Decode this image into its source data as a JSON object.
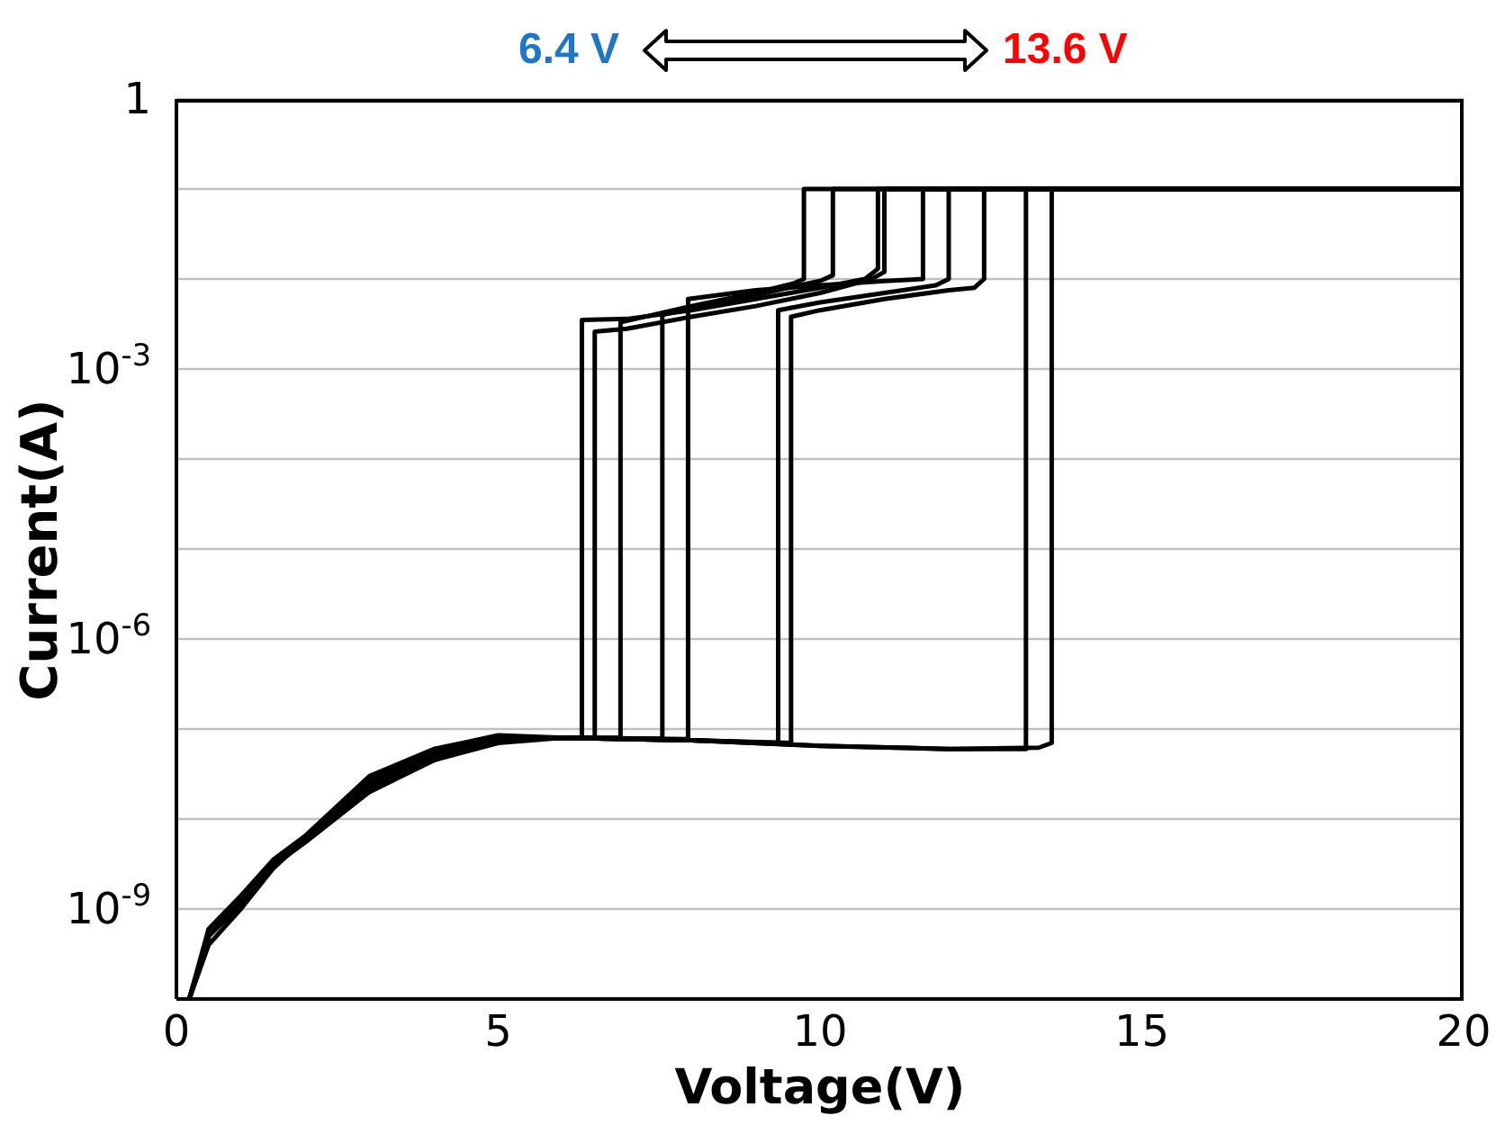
{
  "chart_data": {
    "type": "line",
    "xlabel": "Voltage(V)",
    "ylabel": "Current(A)",
    "log": "y",
    "grid": "y",
    "legend": false,
    "marker": "none",
    "line_style": "solid",
    "xlim": [
      0,
      20
    ],
    "xticks": [
      0,
      5,
      10,
      15,
      20
    ],
    "ylim": [
      1e-10,
      1
    ],
    "yticks": [
      {
        "value": 1e-10,
        "label": null
      },
      {
        "value": 1e-09,
        "label": "10$^{-9}$"
      },
      {
        "value": 1e-08,
        "label": null
      },
      {
        "value": 1e-07,
        "label": null
      },
      {
        "value": 1e-06,
        "label": "10$^{-6}$"
      },
      {
        "value": 1e-05,
        "label": null
      },
      {
        "value": 0.0001,
        "label": null
      },
      {
        "value": 0.001,
        "label": "10$^{-3}$"
      },
      {
        "value": 0.01,
        "label": null
      },
      {
        "value": 0.1,
        "label": null
      },
      {
        "value": 1,
        "label": "1"
      }
    ],
    "annotations": [
      "6.4 V",
      "13.6 V"
    ],
    "series": [
      {
        "color": "#000000",
        "x": [
          0.2,
          0.5,
          1,
          1.5,
          2,
          3,
          4,
          5,
          6,
          6.3,
          6.3,
          7,
          8,
          9,
          10,
          10.7,
          10.9,
          10.9,
          20
        ],
        "values": [
          1e-10,
          5e-10,
          1.2e-09,
          3e-09,
          6e-09,
          2.5e-08,
          5e-08,
          8e-08,
          8e-08,
          8e-08,
          0.0035,
          0.0036,
          0.0045,
          0.006,
          0.008,
          0.01,
          0.013,
          0.1,
          0.1
        ]
      },
      {
        "color": "#000000",
        "x": [
          0.2,
          0.5,
          1,
          1.5,
          2,
          3,
          4,
          5,
          6,
          6.5,
          6.5,
          7,
          8,
          9,
          10,
          10.8,
          11,
          11,
          20
        ],
        "values": [
          1e-10,
          4e-10,
          1e-09,
          2.8e-09,
          6e-09,
          2.2e-08,
          4.5e-08,
          7.5e-08,
          8e-08,
          8e-08,
          0.0026,
          0.0028,
          0.0038,
          0.005,
          0.007,
          0.01,
          0.012,
          0.1,
          0.1
        ]
      },
      {
        "color": "#000000",
        "x": [
          0.2,
          0.5,
          1,
          1.5,
          2,
          3,
          4,
          5,
          6,
          6.9,
          6.9,
          8,
          9,
          9.6,
          9.75,
          9.75,
          20
        ],
        "values": [
          1e-10,
          6e-10,
          1.4e-09,
          3.5e-09,
          6.5e-09,
          3e-08,
          6e-08,
          8.5e-08,
          8e-08,
          8e-08,
          0.0033,
          0.005,
          0.007,
          0.009,
          0.01,
          0.1,
          0.1
        ]
      },
      {
        "color": "#000000",
        "x": [
          0.2,
          0.5,
          1,
          1.5,
          2,
          3,
          4,
          5,
          6,
          7.55,
          7.55,
          8.5,
          9.5,
          10,
          10.2,
          10.2,
          20
        ],
        "values": [
          1e-10,
          5e-10,
          1.1e-09,
          3e-09,
          5.5e-09,
          2e-08,
          4.5e-08,
          7e-08,
          8e-08,
          7.8e-08,
          0.004,
          0.0055,
          0.008,
          0.0095,
          0.011,
          0.1,
          0.1
        ]
      },
      {
        "color": "#000000",
        "x": [
          0.2,
          0.5,
          1,
          1.5,
          2,
          3,
          4,
          5,
          6,
          7.95,
          7.95,
          9,
          10,
          11,
          11.6,
          11.6,
          20
        ],
        "values": [
          1e-10,
          5e-10,
          1.2e-09,
          3.2e-09,
          6e-09,
          2.6e-08,
          5.2e-08,
          8e-08,
          8e-08,
          7.7e-08,
          0.006,
          0.0075,
          0.0085,
          0.0095,
          0.01,
          0.1,
          0.1
        ]
      },
      {
        "color": "#000000",
        "x": [
          0.2,
          0.5,
          1,
          1.5,
          2,
          3,
          4,
          5,
          6,
          8,
          9.35,
          9.35,
          10,
          11,
          11.8,
          12,
          12,
          20
        ],
        "values": [
          1e-10,
          5e-10,
          1.3e-09,
          3.3e-09,
          6.2e-09,
          2.7e-08,
          5.5e-08,
          8e-08,
          8e-08,
          7.5e-08,
          7e-08,
          0.0045,
          0.0055,
          0.007,
          0.0085,
          0.01,
          0.1,
          0.1
        ]
      },
      {
        "color": "#000000",
        "x": [
          0.2,
          0.5,
          1,
          1.5,
          2,
          3,
          4,
          5,
          6,
          8,
          9.55,
          9.55,
          10,
          11,
          12,
          12.4,
          12.55,
          12.55,
          20
        ],
        "values": [
          1e-10,
          5e-10,
          1.2e-09,
          3e-09,
          6e-09,
          2.4e-08,
          5e-08,
          7.8e-08,
          8e-08,
          7.5e-08,
          7e-08,
          0.0038,
          0.0045,
          0.006,
          0.0075,
          0.008,
          0.01,
          0.1,
          0.1
        ]
      },
      {
        "color": "#000000",
        "x": [
          0.2,
          0.5,
          1,
          1.5,
          2,
          3,
          4,
          5,
          6,
          8,
          10,
          12,
          13.2,
          13.2,
          20
        ],
        "values": [
          1e-10,
          5e-10,
          1.2e-09,
          3e-09,
          6e-09,
          2.5e-08,
          5e-08,
          7.8e-08,
          8e-08,
          7.5e-08,
          6.5e-08,
          6e-08,
          6e-08,
          0.1,
          0.1
        ]
      },
      {
        "color": "#000000",
        "x": [
          0.2,
          0.5,
          1,
          1.5,
          2,
          3,
          4,
          5,
          6,
          8,
          10,
          12,
          13.4,
          13.6,
          13.6,
          20
        ],
        "values": [
          1e-10,
          5e-10,
          1.2e-09,
          3e-09,
          6e-09,
          2.5e-08,
          5e-08,
          7.8e-08,
          8e-08,
          7.5e-08,
          6.5e-08,
          6e-08,
          6.2e-08,
          7e-08,
          0.1,
          0.1
        ]
      }
    ]
  }
}
